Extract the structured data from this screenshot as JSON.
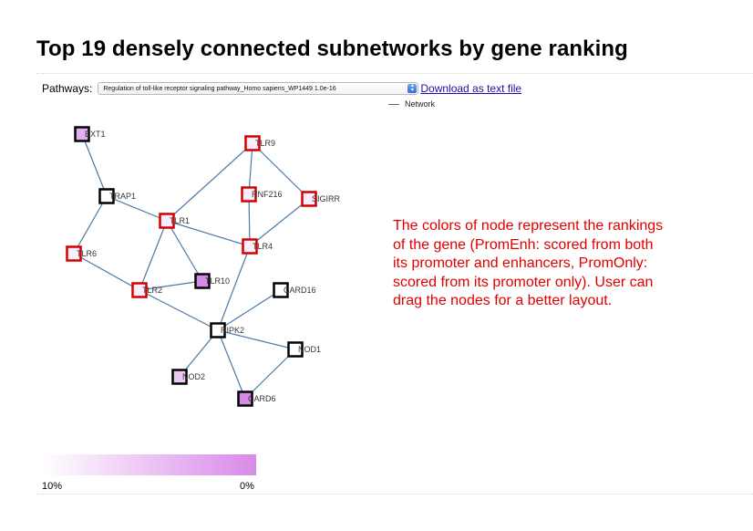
{
  "title": "Top 19 densely connected subnetworks by gene ranking",
  "pathways": {
    "label": "Pathways:",
    "selected": "Regulation of toll-like receptor signaling pathway_Homo sapiens_WP1449 1.0e-16",
    "download_label": "Download as text file"
  },
  "legend": {
    "network_label": "Network",
    "line_color": "#4a78a8"
  },
  "network": {
    "edge_color": "#4a78a8",
    "nodes": [
      {
        "id": "EXT1",
        "label": "EXT1",
        "border": "black",
        "fill": "#e3b1ef"
      },
      {
        "id": "TRAP1",
        "label": "TRAP1",
        "border": "black",
        "fill": "#ffffff"
      },
      {
        "id": "TLR9",
        "label": "TLR9",
        "border": "red",
        "fill": "#fbeefc"
      },
      {
        "id": "RNF216",
        "label": "RNF216",
        "border": "red",
        "fill": "#fbeefc"
      },
      {
        "id": "SIGIRR",
        "label": "SIGIRR",
        "border": "red",
        "fill": "#fbeefc"
      },
      {
        "id": "TLR1",
        "label": "TLR1",
        "border": "red",
        "fill": "#fbeefc"
      },
      {
        "id": "TLR4",
        "label": "TLR4",
        "border": "red",
        "fill": "#fbeefc"
      },
      {
        "id": "TLR6",
        "label": "TLR6",
        "border": "red",
        "fill": "#fbeefc"
      },
      {
        "id": "TLR10",
        "label": "TLR10",
        "border": "black",
        "fill": "#d48ae6"
      },
      {
        "id": "TLR2",
        "label": "TLR2",
        "border": "red",
        "fill": "#fbeefc"
      },
      {
        "id": "CARD16",
        "label": "CARD16",
        "border": "black",
        "fill": "#ffffff"
      },
      {
        "id": "RIPK2",
        "label": "RIPK2",
        "border": "black",
        "fill": "#ffffff"
      },
      {
        "id": "NOD1",
        "label": "NOD1",
        "border": "black",
        "fill": "#ffffff"
      },
      {
        "id": "NOD2",
        "label": "NOD2",
        "border": "black",
        "fill": "#ecc8f4"
      },
      {
        "id": "CARD6",
        "label": "CARD6",
        "border": "black",
        "fill": "#d48ae6"
      }
    ],
    "edges": [
      [
        "EXT1",
        "TRAP1"
      ],
      [
        "TRAP1",
        "TLR1"
      ],
      [
        "TRAP1",
        "TLR6"
      ],
      [
        "TLR9",
        "TLR1"
      ],
      [
        "TLR9",
        "RNF216"
      ],
      [
        "TLR9",
        "SIGIRR"
      ],
      [
        "RNF216",
        "TLR4"
      ],
      [
        "SIGIRR",
        "TLR4"
      ],
      [
        "TLR1",
        "TLR4"
      ],
      [
        "TLR1",
        "TLR2"
      ],
      [
        "TLR1",
        "TLR10"
      ],
      [
        "TLR6",
        "TLR2"
      ],
      [
        "TLR2",
        "TLR10"
      ],
      [
        "TLR2",
        "RIPK2"
      ],
      [
        "TLR4",
        "RIPK2"
      ],
      [
        "CARD16",
        "RIPK2"
      ],
      [
        "RIPK2",
        "NOD1"
      ],
      [
        "RIPK2",
        "NOD2"
      ],
      [
        "RIPK2",
        "CARD6"
      ],
      [
        "NOD1",
        "CARD6"
      ]
    ]
  },
  "info_text": "The colors of node represent the rankings of the gene (PromEnh: scored from both its promoter and enhancers, PromOnly: scored from its promoter only). User can drag the nodes for a better layout.",
  "color_scale": {
    "left_label": "10%",
    "right_label": "0%",
    "start_color": "#ffffff",
    "end_color": "#d98ae9"
  }
}
